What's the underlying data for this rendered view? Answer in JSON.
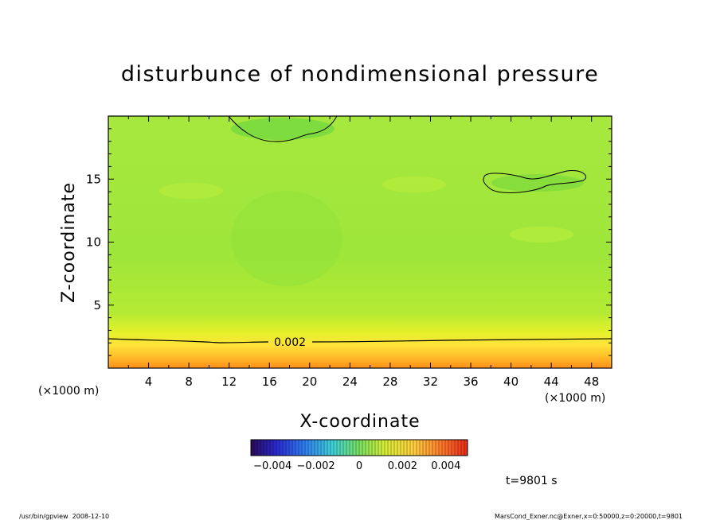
{
  "chart_data": {
    "type": "heatmap",
    "title": "disturbunce of nondimensional pressure",
    "xlabel": "X-coordinate",
    "ylabel": "Z-coordinate",
    "x_unit_left": "(×1000 m)",
    "x_unit_right": "(×1000 m)",
    "xlim": [
      0,
      50
    ],
    "ylim": [
      0,
      20
    ],
    "x_ticks": [
      4,
      8,
      12,
      16,
      20,
      24,
      28,
      32,
      36,
      40,
      44,
      48
    ],
    "y_ticks": [
      5,
      10,
      15
    ],
    "contour_label": "0.002",
    "colorbar": {
      "range": [
        -0.005,
        0.005
      ],
      "tick_labels": [
        "−0.004",
        "−0.002",
        "0",
        "0.002",
        "0.004"
      ],
      "tick_values": [
        -0.004,
        -0.002,
        0,
        0.002,
        0.004
      ]
    },
    "time_label": "t=9801 s",
    "footer_left": "/usr/bin/gpview  2008-12-10",
    "footer_right": "MarsCond_Exner.nc@Exner,x=0:50000,z=0:20000,t=9801",
    "colors": {
      "background_field": "#9be63a",
      "low_band": "#ffd84a",
      "bottom_band": "#ff9a1e",
      "contour": "#000000"
    }
  }
}
